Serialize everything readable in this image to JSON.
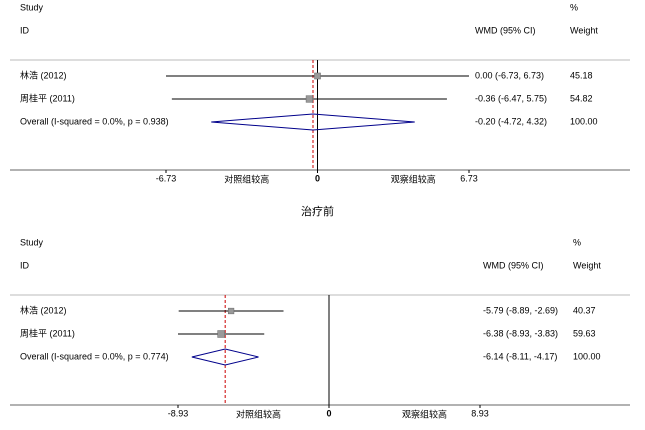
{
  "chart_data": [
    {
      "type": "forest",
      "header_study": "Study",
      "header_id": "ID",
      "header_pct": "%",
      "header_weight": "Weight",
      "header_effect": "WMD (95% CI)",
      "categories": [
        "林浩 (2012)",
        "周桂平 (2011)"
      ],
      "values": [
        0.0,
        -0.36
      ],
      "lower": [
        -6.73,
        -6.47
      ],
      "upper": [
        6.73,
        5.75
      ],
      "value_labels": [
        "0.00 (-6.73, 6.73)",
        "-0.36 (-6.47, 5.75)"
      ],
      "weights": [
        45.18,
        54.82
      ],
      "overall": {
        "label": "Overall  (I-squared = 0.0%, p = 0.938)",
        "value": -0.2,
        "lower": -4.72,
        "upper": 4.32,
        "value_label": "-0.20 (-4.72, 4.32)",
        "weight": {
          "value": 100,
          "label": "100.00"
        }
      },
      "xlim": [
        -6.73,
        6.73
      ],
      "xticks": [
        -6.73,
        0,
        6.73
      ],
      "favours_left": "对照组较高",
      "favours_right": "观察组较高",
      "caption": "治疗前",
      "box_color": "#999999",
      "diamond_color": "#00008b",
      "overall_line_color": "#cc0000"
    },
    {
      "type": "forest",
      "header_study": "Study",
      "header_id": "ID",
      "header_pct": "%",
      "header_weight": "Weight",
      "header_effect": "WMD (95% CI)",
      "categories": [
        "林浩 (2012)",
        "周桂平 (2011)"
      ],
      "values": [
        -5.79,
        -6.38
      ],
      "lower": [
        -8.89,
        -8.93
      ],
      "upper": [
        -2.69,
        -3.83
      ],
      "value_labels": [
        "-5.79 (-8.89, -2.69)",
        "-6.38 (-8.93, -3.83)"
      ],
      "weights": [
        40.37,
        59.63
      ],
      "overall": {
        "label": "Overall  (I-squared = 0.0%, p = 0.774)",
        "value": -6.14,
        "lower": -8.11,
        "upper": -4.17,
        "value_label": "-6.14 (-8.11, -4.17)",
        "weight": {
          "value": 100,
          "label": "100.00"
        }
      },
      "xlim": [
        -8.93,
        8.93
      ],
      "xticks": [
        -8.93,
        0,
        8.93
      ],
      "favours_left": "对照组较高",
      "favours_right": "观察组较高",
      "box_color": "#999999",
      "diamond_color": "#00008b",
      "overall_line_color": "#cc0000"
    }
  ]
}
